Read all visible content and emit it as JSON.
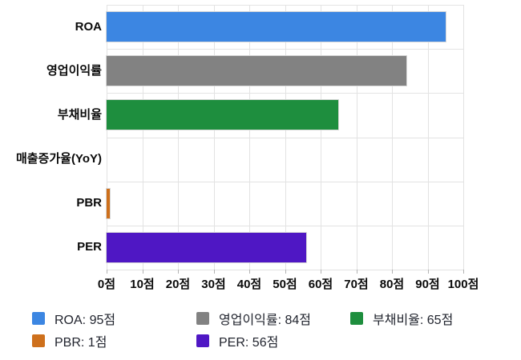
{
  "chart_data": {
    "type": "bar",
    "orientation": "horizontal",
    "title": "",
    "xlabel": "",
    "ylabel": "",
    "unit": "점",
    "xlim": [
      0,
      100
    ],
    "x_ticks": [
      0,
      10,
      20,
      30,
      40,
      50,
      60,
      70,
      80,
      90,
      100
    ],
    "x_tick_labels": [
      "0점",
      "10점",
      "20점",
      "30점",
      "40점",
      "50점",
      "60점",
      "70점",
      "80점",
      "90점",
      "100점"
    ],
    "grid": true,
    "categories": [
      "ROA",
      "영업이익률",
      "부채비율",
      "매출증가율(YoY)",
      "PBR",
      "PER"
    ],
    "values": [
      95,
      84,
      65,
      0,
      1,
      56
    ],
    "bar_colors": [
      "#3C86E2",
      "#828282",
      "#1E8E3E",
      null,
      "#CE701C",
      "#4F17C4"
    ],
    "legend": {
      "position": "bottom",
      "columns": 3,
      "items": [
        {
          "label": "ROA: 95점",
          "color": "#3C86E2"
        },
        {
          "label": "영업이익률: 84점",
          "color": "#828282"
        },
        {
          "label": "부채비율: 65점",
          "color": "#1E8E3E"
        },
        {
          "label": "PBR: 1점",
          "color": "#CE701C"
        },
        {
          "label": "PER: 56점",
          "color": "#4F17C4"
        }
      ]
    },
    "colors": {
      "grid": "#e3e3e3",
      "tick": "#b3b3b3",
      "axis_text": "#0a0a0a",
      "legend_text": "#21242e",
      "background": "#ffffff"
    }
  }
}
